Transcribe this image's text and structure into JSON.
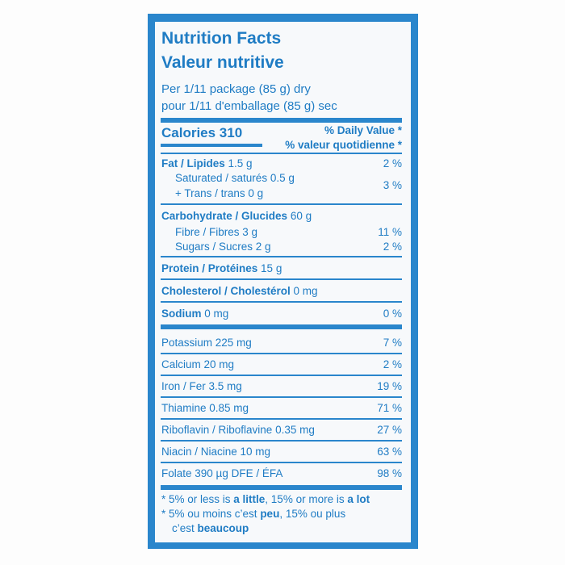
{
  "header": {
    "title_en": "Nutrition Facts",
    "title_fr": "Valeur nutritive",
    "serving_en": "Per 1/11 package (85 g) dry",
    "serving_fr": "pour 1/11 d'emballage (85 g) sec"
  },
  "calories": {
    "label": "Calories 310",
    "dv_en": "% Daily Value *",
    "dv_fr": "% valeur quotidienne *"
  },
  "fat": {
    "name": "Fat / Lipides",
    "amount": "1.5 g",
    "dv": "2 %",
    "saturated": "Saturated / saturés 0.5 g",
    "trans": "+ Trans / trans 0 g",
    "sat_trans_dv": "3 %"
  },
  "carbohydrate": {
    "name": "Carbohydrate / Glucides",
    "amount": "60 g",
    "fibre": "Fibre / Fibres 3 g",
    "fibre_dv": "11 %",
    "sugars": "Sugars / Sucres 2 g",
    "sugars_dv": "2 %"
  },
  "protein": {
    "name": "Protein / Protéines",
    "amount": "15 g"
  },
  "cholesterol": {
    "name": "Cholesterol / Cholestérol",
    "amount": "0 mg"
  },
  "sodium": {
    "name": "Sodium",
    "amount": "0 mg",
    "dv": "0 %"
  },
  "minerals": [
    {
      "label": "Potassium 225 mg",
      "dv": "7 %"
    },
    {
      "label": "Calcium 20 mg",
      "dv": "2 %"
    },
    {
      "label": "Iron / Fer 3.5 mg",
      "dv": "19 %"
    },
    {
      "label": "Thiamine 0.85 mg",
      "dv": "71 %"
    },
    {
      "label": "Riboflavin / Riboflavine 0.35 mg",
      "dv": "27 %"
    },
    {
      "label": "Niacin / Niacine 10 mg",
      "dv": "63 %"
    },
    {
      "label": "Folate 390 µg DFE / ÉFA",
      "dv": "98 %"
    }
  ],
  "footnotes": {
    "en": [
      "* 5% or less is ",
      "a little",
      ", 15% or more is ",
      "a lot"
    ],
    "fr": [
      "* 5% ou moins c’est ",
      "peu",
      ", 15% ou plus",
      "c’est ",
      "beaucoup"
    ]
  }
}
